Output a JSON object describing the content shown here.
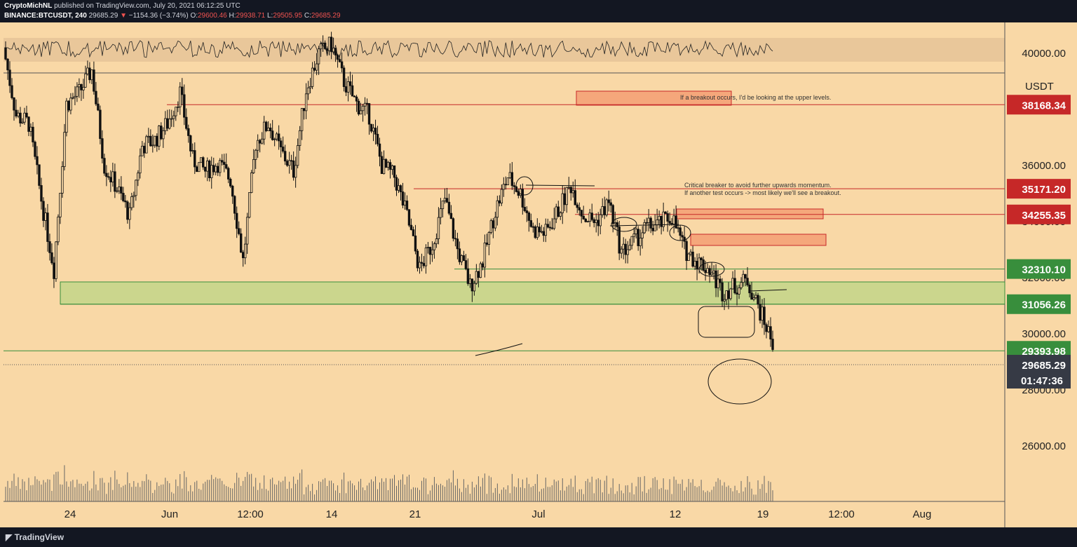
{
  "header": {
    "author": "CryptoMichNL",
    "published": "published on TradingView.com, July 20, 2021 06:12:25 UTC",
    "symbol": "BINANCE:BTCUSDT, 240",
    "last": "29685.29",
    "change": "−1154.36 (−3.74%)",
    "o_label": "O:",
    "o_value": "29600.46",
    "h_label": "H:",
    "h_value": "29938.71",
    "l_label": "L:",
    "l_value": "29505.95",
    "c_label": "C:",
    "c_value": "29685.29"
  },
  "footer": {
    "brand": "TradingView"
  },
  "colors": {
    "background": "#f9d8a6",
    "candle": "#000000",
    "resistance": "#c62828",
    "support": "#388e3c",
    "price_label": "#363a45"
  },
  "chart_data": {
    "type": "candlestick",
    "symbol": "BINANCE:BTCUSDT",
    "interval": "240",
    "currency": "USDT",
    "y_ticks": [
      26000,
      28000,
      30000,
      32000,
      34000,
      36000,
      40000
    ],
    "y_tick_labels": [
      "26000.00",
      "28000.00",
      "30000.00",
      "32000.00",
      "34000.00",
      "36000.00",
      "40000.00"
    ],
    "x_ticks": [
      "24",
      "Jun",
      "12:00",
      "14",
      "21",
      "Jul",
      "12",
      "19",
      "12:00",
      "Aug"
    ],
    "horizontal_levels": [
      {
        "price": 38168.34,
        "label": "38168.34",
        "color": "#c62828"
      },
      {
        "price": 35171.2,
        "label": "35171.20",
        "color": "#c62828"
      },
      {
        "price": 34255.35,
        "label": "34255.35",
        "color": "#c62828"
      },
      {
        "price": 32310.1,
        "label": "32310.10",
        "color": "#388e3c"
      },
      {
        "price": 31056.26,
        "label": "31056.26",
        "color": "#388e3c"
      },
      {
        "price": 29393.98,
        "label": "29393.98",
        "color": "#388e3c"
      }
    ],
    "current_price": {
      "label": "29685.29",
      "countdown": "01:47:36"
    },
    "zones": [
      {
        "kind": "support",
        "from": 31056.26,
        "to": 31850
      },
      {
        "kind": "resistance",
        "from": 38150,
        "to": 38650
      },
      {
        "kind": "resistance",
        "from": 34100,
        "to": 34450
      },
      {
        "kind": "resistance",
        "from": 33150,
        "to": 33550
      }
    ],
    "annotations": [
      "If a breakout occurs, I'd be looking at the upper levels.",
      "Critical breaker to avoid further upwards momentum.",
      "If another test occurs -> most likely we'll see a breakout."
    ],
    "price_path": [
      {
        "t": "May 20",
        "price": 40200
      },
      {
        "t": "May 21",
        "price": 37800
      },
      {
        "t": "May 22",
        "price": 37500
      },
      {
        "t": "May 23",
        "price": 34800
      },
      {
        "t": "May 24",
        "price": 32300
      },
      {
        "t": "May 25",
        "price": 38200
      },
      {
        "t": "May 26",
        "price": 38600
      },
      {
        "t": "May 27",
        "price": 39400
      },
      {
        "t": "May 28",
        "price": 36000
      },
      {
        "t": "May 29",
        "price": 35200
      },
      {
        "t": "May 30",
        "price": 34200
      },
      {
        "t": "May 31",
        "price": 36700
      },
      {
        "t": "Jun 1",
        "price": 36900
      },
      {
        "t": "Jun 2",
        "price": 37500
      },
      {
        "t": "Jun 3",
        "price": 38600
      },
      {
        "t": "Jun 4",
        "price": 36200
      },
      {
        "t": "Jun 5",
        "price": 35800
      },
      {
        "t": "Jun 6",
        "price": 36100
      },
      {
        "t": "Jun 7",
        "price": 35500
      },
      {
        "t": "Jun 8",
        "price": 32600
      },
      {
        "t": "Jun 9",
        "price": 36800
      },
      {
        "t": "Jun 10",
        "price": 37500
      },
      {
        "t": "Jun 11",
        "price": 36500
      },
      {
        "t": "Jun 12",
        "price": 35800
      },
      {
        "t": "Jun 13",
        "price": 38700
      },
      {
        "t": "Jun 14",
        "price": 40000
      },
      {
        "t": "Jun 15",
        "price": 40300
      },
      {
        "t": "Jun 16",
        "price": 39000
      },
      {
        "t": "Jun 17",
        "price": 38200
      },
      {
        "t": "Jun 18",
        "price": 37800
      },
      {
        "t": "Jun 19",
        "price": 36000
      },
      {
        "t": "Jun 20",
        "price": 35600
      },
      {
        "t": "Jun 21",
        "price": 34200
      },
      {
        "t": "Jun 22",
        "price": 32300
      },
      {
        "t": "Jun 23",
        "price": 33200
      },
      {
        "t": "Jun 24",
        "price": 34800
      },
      {
        "t": "Jun 25",
        "price": 33000
      },
      {
        "t": "Jun 26",
        "price": 31700
      },
      {
        "t": "Jun 27",
        "price": 32600
      },
      {
        "t": "Jun 28",
        "price": 34400
      },
      {
        "t": "Jun 29",
        "price": 35600
      },
      {
        "t": "Jun 30",
        "price": 35000
      },
      {
        "t": "Jul 1",
        "price": 33700
      },
      {
        "t": "Jul 2",
        "price": 33600
      },
      {
        "t": "Jul 3",
        "price": 34400
      },
      {
        "t": "Jul 4",
        "price": 35300
      },
      {
        "t": "Jul 5",
        "price": 34200
      },
      {
        "t": "Jul 6",
        "price": 34000
      },
      {
        "t": "Jul 7",
        "price": 34700
      },
      {
        "t": "Jul 8",
        "price": 32900
      },
      {
        "t": "Jul 9",
        "price": 33300
      },
      {
        "t": "Jul 10",
        "price": 33800
      },
      {
        "t": "Jul 11",
        "price": 33900
      },
      {
        "t": "Jul 12",
        "price": 34200
      },
      {
        "t": "Jul 13",
        "price": 33000
      },
      {
        "t": "Jul 14",
        "price": 32600
      },
      {
        "t": "Jul 15",
        "price": 32300
      },
      {
        "t": "Jul 16",
        "price": 31500
      },
      {
        "t": "Jul 17",
        "price": 31700
      },
      {
        "t": "Jul 18",
        "price": 31900
      },
      {
        "t": "Jul 19",
        "price": 30800
      },
      {
        "t": "Jul 20",
        "price": 29685
      }
    ]
  }
}
